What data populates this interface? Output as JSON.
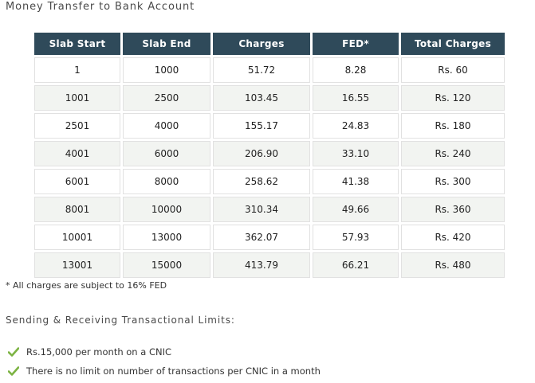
{
  "heading": "Money Transfer to Bank Account",
  "table": {
    "columns": [
      "Slab Start",
      "Slab End",
      "Charges",
      "FED*",
      "Total Charges"
    ],
    "rows": [
      [
        "1",
        "1000",
        "51.72",
        "8.28",
        "Rs. 60"
      ],
      [
        "1001",
        "2500",
        "103.45",
        "16.55",
        "Rs. 120"
      ],
      [
        "2501",
        "4000",
        "155.17",
        "24.83",
        "Rs. 180"
      ],
      [
        "4001",
        "6000",
        "206.90",
        "33.10",
        "Rs. 240"
      ],
      [
        "6001",
        "8000",
        "258.62",
        "41.38",
        "Rs. 300"
      ],
      [
        "8001",
        "10000",
        "310.34",
        "49.66",
        "Rs. 360"
      ],
      [
        "10001",
        "13000",
        "362.07",
        "57.93",
        "Rs. 420"
      ],
      [
        "13001",
        "15000",
        "413.79",
        "66.21",
        "Rs. 480"
      ]
    ]
  },
  "footnote": "* All charges are subject to 16% FED",
  "limits": {
    "heading": "Sending & Receiving Transactional Limits:",
    "items": [
      "Rs.15,000 per month on a CNIC",
      "There is no limit on number of transactions per CNIC in a month"
    ],
    "item_icon": "check-icon"
  },
  "colors": {
    "header_bg": "#2f4a5a",
    "header_text": "#ffffff",
    "alt_row_bg": "#f2f4f1",
    "cell_border": "#e1e1e1",
    "check_green": "#7cb342"
  }
}
